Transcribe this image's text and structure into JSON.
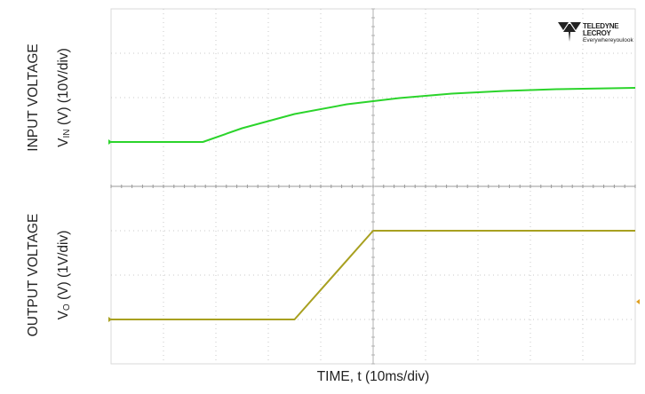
{
  "chart_data": {
    "type": "line",
    "title": "",
    "xlabel": "TIME, t (10ms/div)",
    "xlim_div": [
      0,
      10
    ],
    "grid": true,
    "brand": {
      "name": "TELEDYNE LECROY",
      "tagline": "Everywhereyoulook"
    },
    "panels": [
      {
        "id": "input",
        "ylabel_line1": "INPUT VOLTAGE",
        "ylabel_sym": "V",
        "ylabel_sub": "IN",
        "ylabel_rest": " (V) (10V/div)",
        "color": "#2bd42b",
        "ylim_div": [
          -1,
          3
        ],
        "x": [
          0,
          1.75,
          2.5,
          3.5,
          4.5,
          5.5,
          6.5,
          7.5,
          8.5,
          10
        ],
        "y": [
          0,
          0,
          0.31,
          0.63,
          0.85,
          0.99,
          1.09,
          1.15,
          1.19,
          1.22
        ]
      },
      {
        "id": "output",
        "ylabel_line1": "OUTPUT VOLTAGE",
        "ylabel_sym": "V",
        "ylabel_sub": "O",
        "ylabel_rest": " (V) (1V/div)",
        "color": "#a8a020",
        "ylim_div": [
          -1,
          3
        ],
        "x": [
          0,
          3.5,
          5.0,
          10
        ],
        "y": [
          0,
          0,
          2.0,
          2.0
        ]
      }
    ]
  }
}
